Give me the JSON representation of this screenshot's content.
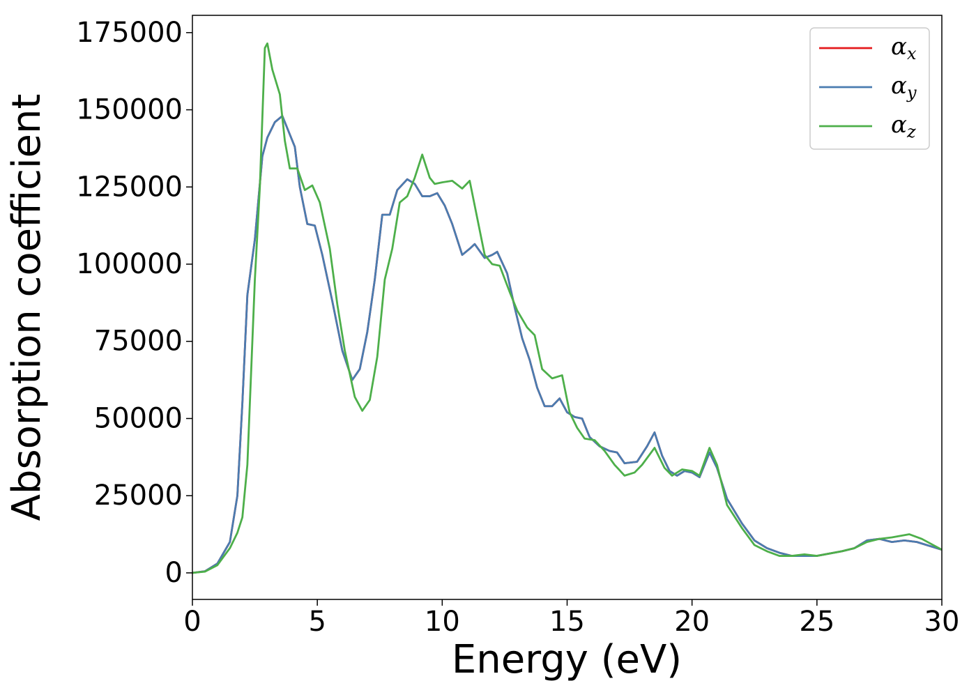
{
  "chart_data": {
    "type": "line",
    "xlabel": "Energy (eV)",
    "ylabel": "Absorption coefficient",
    "xlim": [
      0,
      30
    ],
    "xticks": [
      0,
      5,
      10,
      15,
      20,
      25,
      30
    ],
    "ylim": [
      -8600,
      180600
    ],
    "yticks": [
      0,
      25000,
      50000,
      75000,
      100000,
      125000,
      150000,
      175000
    ],
    "legend": "upper right",
    "series": [
      {
        "name": "αx",
        "color": "#e41a1c",
        "x": [
          0,
          0.5,
          1.0,
          1.5,
          1.8,
          2.0,
          2.2,
          2.5,
          2.8,
          3.0,
          3.3,
          3.6,
          3.9,
          4.1,
          4.3,
          4.6,
          4.9,
          5.2,
          5.6,
          6.0,
          6.4,
          6.7,
          7.0,
          7.3,
          7.6,
          7.9,
          8.2,
          8.6,
          8.9,
          9.2,
          9.5,
          9.8,
          10.1,
          10.4,
          10.8,
          11.1,
          11.3,
          11.7,
          12.0,
          12.2,
          12.6,
          12.9,
          13.2,
          13.5,
          13.8,
          14.1,
          14.4,
          14.7,
          15.0,
          15.3,
          15.6,
          15.9,
          16.3,
          16.7,
          17.0,
          17.3,
          17.8,
          18.2,
          18.5,
          18.8,
          19.1,
          19.4,
          19.7,
          20.0,
          20.3,
          20.7,
          21.0,
          21.4,
          22.0,
          22.5,
          23.0,
          23.5,
          24.0,
          25.0,
          26.0,
          26.5,
          27.0,
          27.5,
          28.0,
          28.5,
          29.0,
          30.0
        ],
        "values": [
          0,
          500,
          3000,
          10000,
          25000,
          55000,
          90000,
          108000,
          135000,
          141000,
          146000,
          148000,
          142000,
          138000,
          125000,
          113000,
          112500,
          103000,
          88000,
          72000,
          62500,
          66000,
          78000,
          95000,
          116000,
          116000,
          124000,
          127500,
          126000,
          122000,
          122000,
          123000,
          119000,
          113000,
          103000,
          105000,
          106500,
          102000,
          103000,
          104000,
          97000,
          86000,
          76000,
          69000,
          60000,
          54000,
          54000,
          56500,
          52000,
          50500,
          50000,
          44000,
          41000,
          39500,
          39000,
          35500,
          36000,
          41000,
          45500,
          38000,
          33000,
          31500,
          33000,
          32500,
          31000,
          39000,
          34000,
          24000,
          16000,
          10500,
          8000,
          6500,
          5500,
          5500,
          7000,
          8000,
          10500,
          11000,
          10000,
          10500,
          10000,
          7500
        ]
      },
      {
        "name": "αy",
        "color": "#4a7cb0",
        "x": [
          0,
          0.5,
          1.0,
          1.5,
          1.8,
          2.0,
          2.2,
          2.5,
          2.8,
          3.0,
          3.3,
          3.6,
          3.9,
          4.1,
          4.3,
          4.6,
          4.9,
          5.2,
          5.6,
          6.0,
          6.4,
          6.7,
          7.0,
          7.3,
          7.6,
          7.9,
          8.2,
          8.6,
          8.9,
          9.2,
          9.5,
          9.8,
          10.1,
          10.4,
          10.8,
          11.1,
          11.3,
          11.7,
          12.0,
          12.2,
          12.6,
          12.9,
          13.2,
          13.5,
          13.8,
          14.1,
          14.4,
          14.7,
          15.0,
          15.3,
          15.6,
          15.9,
          16.3,
          16.7,
          17.0,
          17.3,
          17.8,
          18.2,
          18.5,
          18.8,
          19.1,
          19.4,
          19.7,
          20.0,
          20.3,
          20.7,
          21.0,
          21.4,
          22.0,
          22.5,
          23.0,
          23.5,
          24.0,
          25.0,
          26.0,
          26.5,
          27.0,
          27.5,
          28.0,
          28.5,
          29.0,
          30.0
        ],
        "values": [
          0,
          500,
          3000,
          10000,
          25000,
          55000,
          90000,
          108000,
          135000,
          141000,
          146000,
          148000,
          142000,
          138000,
          125000,
          113000,
          112500,
          103000,
          88000,
          72000,
          62500,
          66000,
          78000,
          95000,
          116000,
          116000,
          124000,
          127500,
          126000,
          122000,
          122000,
          123000,
          119000,
          113000,
          103000,
          105000,
          106500,
          102000,
          103000,
          104000,
          97000,
          86000,
          76000,
          69000,
          60000,
          54000,
          54000,
          56500,
          52000,
          50500,
          50000,
          44000,
          41000,
          39500,
          39000,
          35500,
          36000,
          41000,
          45500,
          38000,
          33000,
          31500,
          33000,
          32500,
          31000,
          39000,
          34000,
          24000,
          16000,
          10500,
          8000,
          6500,
          5500,
          5500,
          7000,
          8000,
          10500,
          11000,
          10000,
          10500,
          10000,
          7500
        ]
      },
      {
        "name": "αz",
        "color": "#4daf4a",
        "x": [
          0,
          0.5,
          1.0,
          1.5,
          1.8,
          2.0,
          2.2,
          2.5,
          2.7,
          2.9,
          3.0,
          3.2,
          3.5,
          3.7,
          3.9,
          4.2,
          4.5,
          4.8,
          5.1,
          5.5,
          5.8,
          6.1,
          6.5,
          6.8,
          7.1,
          7.4,
          7.7,
          8.0,
          8.3,
          8.6,
          8.9,
          9.2,
          9.5,
          9.7,
          10.0,
          10.4,
          10.8,
          11.1,
          11.4,
          11.7,
          12.0,
          12.3,
          12.7,
          13.0,
          13.4,
          13.7,
          14.0,
          14.4,
          14.8,
          15.1,
          15.4,
          15.7,
          16.1,
          16.5,
          16.9,
          17.3,
          17.7,
          18.0,
          18.5,
          18.9,
          19.2,
          19.6,
          20.0,
          20.3,
          20.7,
          21.0,
          21.4,
          22.0,
          22.5,
          23.0,
          23.5,
          24.0,
          24.5,
          25.0,
          26.0,
          26.5,
          27.0,
          27.5,
          28.0,
          28.7,
          29.2,
          30.0
        ],
        "values": [
          0,
          400,
          2500,
          8000,
          13000,
          18000,
          35000,
          95000,
          125000,
          170000,
          171500,
          163000,
          155000,
          140000,
          131000,
          131000,
          124000,
          125500,
          120000,
          105000,
          87000,
          72000,
          57000,
          52500,
          56000,
          70000,
          95000,
          105000,
          120000,
          122000,
          128000,
          135500,
          128000,
          126000,
          126500,
          127000,
          124500,
          127000,
          115000,
          103000,
          100000,
          99500,
          91000,
          85000,
          79500,
          77000,
          66000,
          63000,
          64000,
          52000,
          47000,
          43500,
          43000,
          39500,
          35000,
          31500,
          32500,
          35000,
          40500,
          34000,
          31500,
          33500,
          33000,
          31500,
          40500,
          35000,
          22000,
          14500,
          9000,
          7000,
          5500,
          5500,
          6000,
          5500,
          7000,
          8000,
          10000,
          11000,
          11500,
          12500,
          11000,
          7500
        ]
      }
    ]
  }
}
